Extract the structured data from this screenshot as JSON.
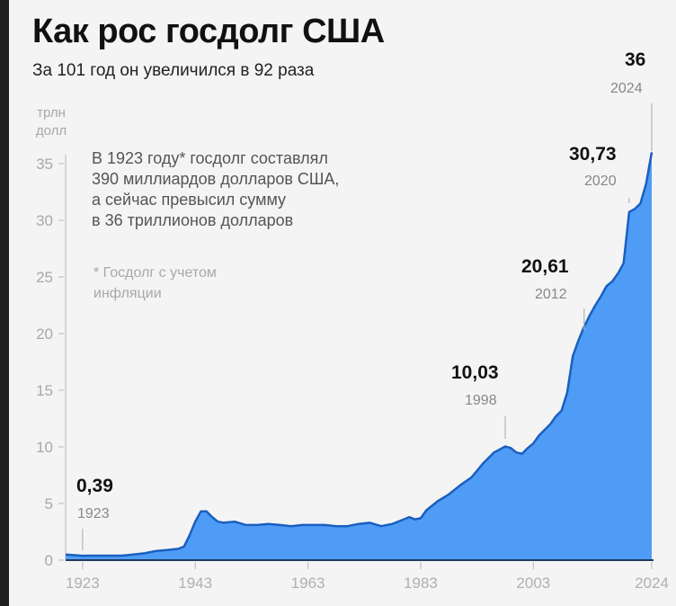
{
  "header": {
    "title": "Как рос госдолг США",
    "subtitle": "За 101 год он увеличился в 92 раза"
  },
  "axis": {
    "unit_line1": "трлн",
    "unit_line2": "долл"
  },
  "annotation": {
    "lines": [
      "В 1923 году* госдолг составлял",
      "390 миллиардов долларов США,",
      "а сейчас превысил сумму",
      "в 36 триллионов долларов"
    ],
    "footnote_lines": [
      "* Госдолг с учетом",
      "инфляции"
    ]
  },
  "callouts": [
    {
      "value": "0,39",
      "year": "1923"
    },
    {
      "value": "10,03",
      "year": "1998"
    },
    {
      "value": "20,61",
      "year": "2012"
    },
    {
      "value": "30,73",
      "year": "2020"
    },
    {
      "value": "36",
      "year": "2024"
    }
  ],
  "colors": {
    "fill": "#4f9cf7",
    "line": "#1a5fbf",
    "axis": "#1e3a5c",
    "background": "#f4f4f4"
  },
  "chart_data": {
    "type": "area",
    "title": "Как рос госдолг США",
    "subtitle": "За 101 год он увеличился в 92 раза",
    "xlabel": "",
    "ylabel": "трлн долл",
    "ylim": [
      0,
      35
    ],
    "yticks": [
      0,
      5,
      10,
      15,
      20,
      25,
      30,
      35
    ],
    "xticks": [
      "1923",
      "1943",
      "1963",
      "1983",
      "2003",
      "2024"
    ],
    "grid": false,
    "x": [
      1920,
      1923,
      1925,
      1930,
      1932,
      1934,
      1936,
      1938,
      1940,
      1941,
      1942,
      1943,
      1944,
      1945,
      1946,
      1947,
      1948,
      1950,
      1952,
      1954,
      1956,
      1958,
      1960,
      1962,
      1964,
      1966,
      1968,
      1970,
      1972,
      1974,
      1976,
      1978,
      1980,
      1981,
      1982,
      1983,
      1984,
      1986,
      1988,
      1990,
      1992,
      1993,
      1994,
      1996,
      1998,
      1999,
      2000,
      2001,
      2002,
      2003,
      2004,
      2006,
      2007,
      2008,
      2009,
      2010,
      2011,
      2012,
      2013,
      2014,
      2015,
      2016,
      2017,
      2018,
      2019,
      2020,
      2021,
      2022,
      2023,
      2024
    ],
    "values": [
      0.5,
      0.39,
      0.4,
      0.4,
      0.5,
      0.6,
      0.8,
      0.9,
      1.0,
      1.2,
      2.2,
      3.4,
      4.3,
      4.3,
      3.8,
      3.4,
      3.3,
      3.4,
      3.1,
      3.1,
      3.2,
      3.1,
      3.0,
      3.1,
      3.1,
      3.1,
      3.0,
      3.0,
      3.2,
      3.3,
      3.0,
      3.2,
      3.6,
      3.8,
      3.6,
      3.7,
      4.4,
      5.2,
      5.8,
      6.6,
      7.3,
      7.9,
      8.5,
      9.5,
      10.03,
      9.9,
      9.5,
      9.4,
      9.9,
      10.3,
      11.0,
      12.0,
      12.7,
      13.2,
      14.8,
      18.0,
      19.4,
      20.61,
      21.6,
      22.5,
      23.3,
      24.2,
      24.6,
      25.3,
      26.2,
      30.73,
      31.0,
      31.5,
      33.2,
      36.0
    ]
  }
}
